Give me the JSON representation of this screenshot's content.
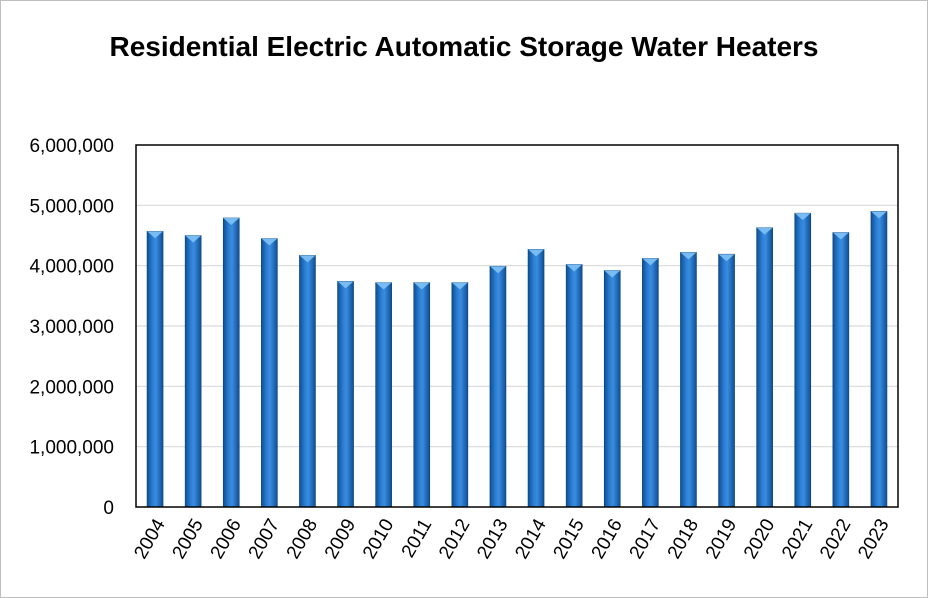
{
  "chart_data": {
    "type": "bar",
    "title": "Residential Electric Automatic Storage Water Heaters",
    "xlabel": "",
    "ylabel": "",
    "categories": [
      "2004",
      "2005",
      "2006",
      "2007",
      "2008",
      "2009",
      "2010",
      "2011",
      "2012",
      "2013",
      "2014",
      "2015",
      "2016",
      "2017",
      "2018",
      "2019",
      "2020",
      "2021",
      "2022",
      "2023"
    ],
    "values": [
      4570000,
      4500000,
      4790000,
      4450000,
      4170000,
      3740000,
      3720000,
      3720000,
      3720000,
      3990000,
      4270000,
      4020000,
      3920000,
      4120000,
      4220000,
      4190000,
      4630000,
      4870000,
      4550000,
      4900000
    ],
    "ylim": [
      0,
      6000000
    ],
    "yticks": [
      0,
      1000000,
      2000000,
      3000000,
      4000000,
      5000000,
      6000000
    ],
    "ytick_labels": [
      "0",
      "1,000,000",
      "2,000,000",
      "3,000,000",
      "4,000,000",
      "5,000,000",
      "6,000,000"
    ],
    "grid": true,
    "legend": "none",
    "bar_color": "#1F6FBF"
  }
}
